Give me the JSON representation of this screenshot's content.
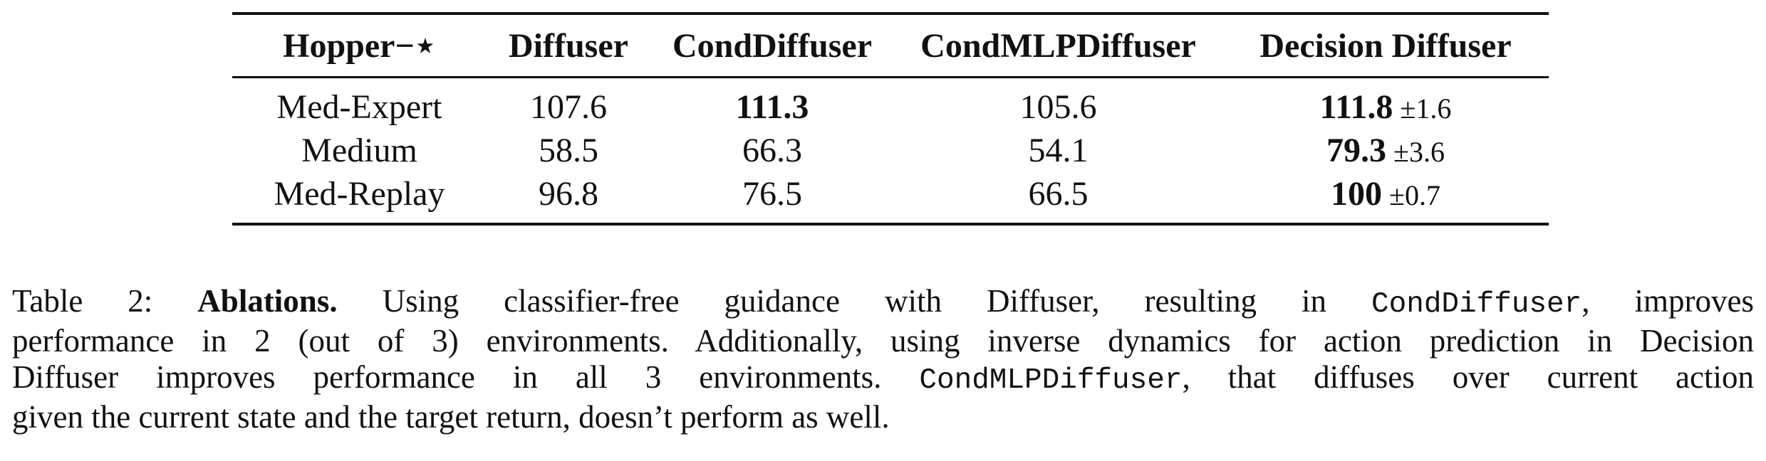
{
  "table": {
    "header": [
      "Hopper−⋆",
      "Diffuser",
      "CondDiffuser",
      "CondMLPDiffuser",
      "Decision Diffuser"
    ],
    "rows": [
      [
        {
          "text": "Med-Expert",
          "bold": false
        },
        {
          "text": "107.6",
          "bold": false
        },
        {
          "text": "111.3",
          "bold": true
        },
        {
          "text": "105.6",
          "bold": false
        },
        {
          "text": "111.8",
          "bold": true,
          "std": "±1.6"
        }
      ],
      [
        {
          "text": "Medium",
          "bold": false
        },
        {
          "text": "58.5",
          "bold": false
        },
        {
          "text": "66.3",
          "bold": false
        },
        {
          "text": "54.1",
          "bold": false
        },
        {
          "text": "79.3",
          "bold": true,
          "std": "±3.6"
        }
      ],
      [
        {
          "text": "Med-Replay",
          "bold": false
        },
        {
          "text": "96.8",
          "bold": false
        },
        {
          "text": "76.5",
          "bold": false
        },
        {
          "text": "66.5",
          "bold": false
        },
        {
          "text": "100",
          "bold": true,
          "std": "±0.7"
        }
      ]
    ]
  },
  "caption": {
    "lines": [
      [
        {
          "text": "Table 2: ",
          "style": "plain"
        },
        {
          "text": "Ablations.",
          "style": "bold"
        },
        {
          "text": " Using classifier-free guidance with Diffuser, resulting in ",
          "style": "plain"
        },
        {
          "text": "CondDiffuser",
          "style": "mono"
        },
        {
          "text": ", improves",
          "style": "plain"
        }
      ],
      [
        {
          "text": "performance in 2 (out of 3) environments. Additionally, using inverse dynamics for action prediction in Decision",
          "style": "plain"
        }
      ],
      [
        {
          "text": "Diffuser improves performance in all 3 environments. ",
          "style": "plain"
        },
        {
          "text": "CondMLPDiffuser",
          "style": "mono"
        },
        {
          "text": ", that diffuses over current action",
          "style": "plain"
        }
      ],
      [
        {
          "text": "given the current state and the target return, doesn’t perform as well.",
          "style": "plain"
        }
      ]
    ]
  }
}
